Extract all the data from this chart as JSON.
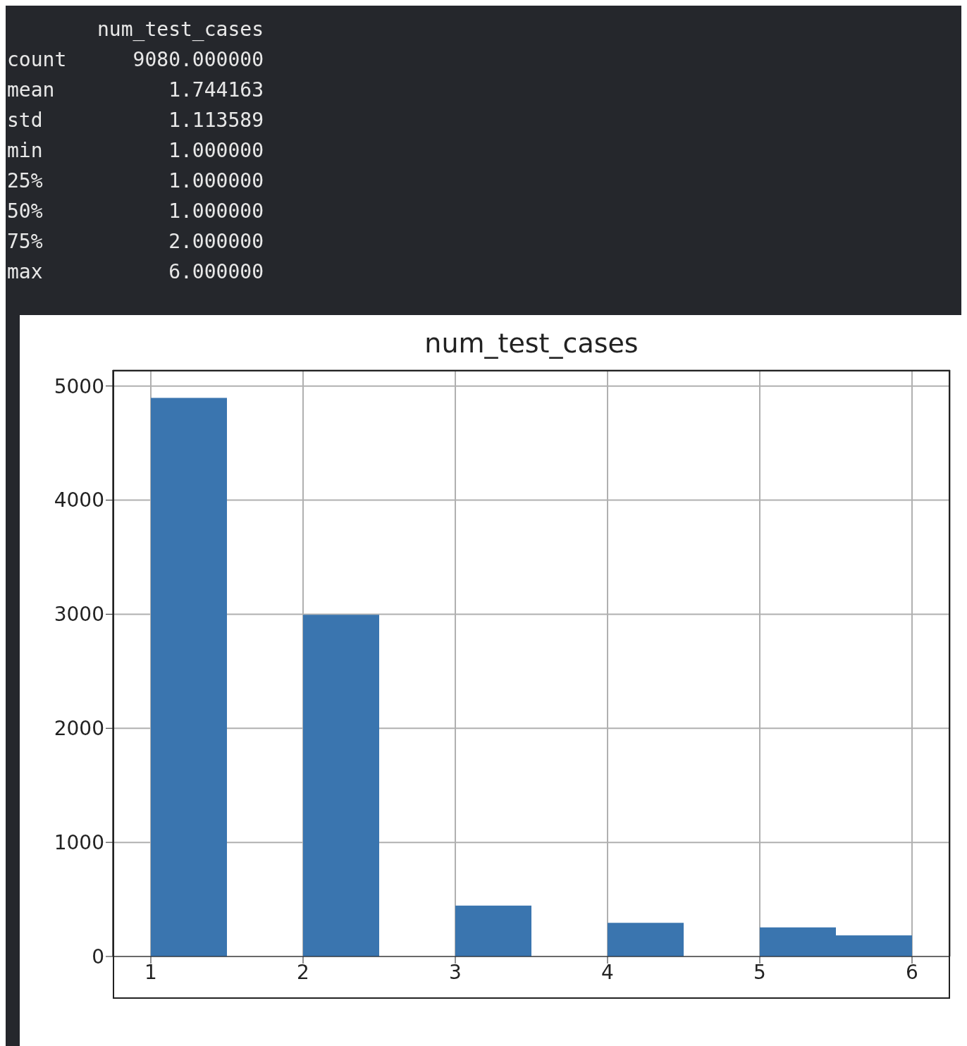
{
  "chart_data": {
    "type": "histogram",
    "title": "num_test_cases",
    "annotations": [
      "num_test_cases",
      "count 9080.000000",
      "mean 1.744163",
      "std 1.113589",
      "min 1.000000",
      "25% 1.000000",
      "50% 1.000000",
      "75% 2.000000",
      "max 6.000000"
    ],
    "bins": [
      1,
      1.5,
      2,
      2.5,
      3,
      3.5,
      4,
      4.5,
      5,
      5.5,
      6
    ],
    "values": [
      4896,
      0,
      2995,
      0,
      446,
      0,
      295,
      0,
      255,
      185
    ],
    "color": "#3a75af",
    "xlim": [
      0.75,
      6.25
    ],
    "xticks": [
      1,
      2,
      3,
      4,
      5,
      6
    ],
    "ylim": [
      0,
      5140
    ],
    "yticks": [
      0,
      1000,
      2000,
      3000,
      4000,
      5000
    ],
    "grid": true
  }
}
